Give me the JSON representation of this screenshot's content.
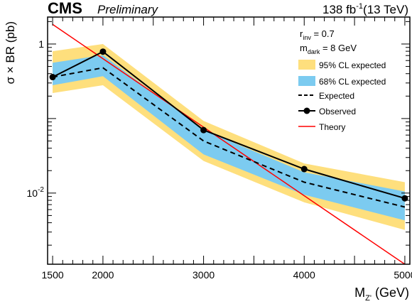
{
  "header": {
    "experiment": "CMS",
    "status": "Preliminary",
    "luminosity": "138 fb",
    "lumi_exponent": "-1",
    "energy": "(13 TeV)"
  },
  "params": {
    "rinv_main": "r",
    "rinv_sub": "inv",
    "rinv_value": " = 0.7",
    "mdark_main": "m",
    "mdark_sub": "dark",
    "mdark_value": " = 8 GeV"
  },
  "axes": {
    "ylabel": "σ × BR (pb)",
    "xlabel_main": "M",
    "xlabel_sub": "Z'",
    "xlabel_unit": " (GeV)"
  },
  "colors": {
    "band95": "#fedf7d",
    "band68": "#7ccbf0",
    "observed": "#000000",
    "expected": "#000000",
    "theory": "#ff0000"
  },
  "chart_data": {
    "type": "line",
    "xlabel": "M_Z' (GeV)",
    "ylabel": "σ × BR (pb)",
    "xlim": [
      1450,
      5050
    ],
    "ylim": [
      0.00111,
      2.3
    ],
    "yscale": "log",
    "x_ticks": [
      1500,
      2000,
      3000,
      4000,
      5000
    ],
    "y_ticks": [
      {
        "value": 1,
        "label": "1"
      },
      {
        "value": 0.01,
        "label": "10",
        "exp": "-2"
      }
    ],
    "legend_position": "top-right",
    "x": [
      1500,
      2000,
      3000,
      4000,
      5000
    ],
    "series": [
      {
        "name": "95% CL expected",
        "kind": "band",
        "low": [
          0.22,
          0.28,
          0.027,
          0.0075,
          0.0032
        ],
        "high": [
          0.8,
          1.0,
          0.093,
          0.025,
          0.014
        ]
      },
      {
        "name": "68% CL expected",
        "kind": "band",
        "low": [
          0.28,
          0.37,
          0.033,
          0.0095,
          0.0043
        ],
        "high": [
          0.56,
          0.71,
          0.07,
          0.019,
          0.0105
        ]
      },
      {
        "name": "Expected",
        "kind": "dashed",
        "values": [
          0.36,
          0.48,
          0.05,
          0.014,
          0.0065
        ]
      },
      {
        "name": "Observed",
        "kind": "markers",
        "values": [
          0.36,
          0.79,
          0.07,
          0.021,
          0.0085
        ]
      },
      {
        "name": "Theory",
        "kind": "line",
        "x": [
          1500,
          5000
        ],
        "values": [
          1.83,
          0.00111
        ]
      }
    ]
  }
}
